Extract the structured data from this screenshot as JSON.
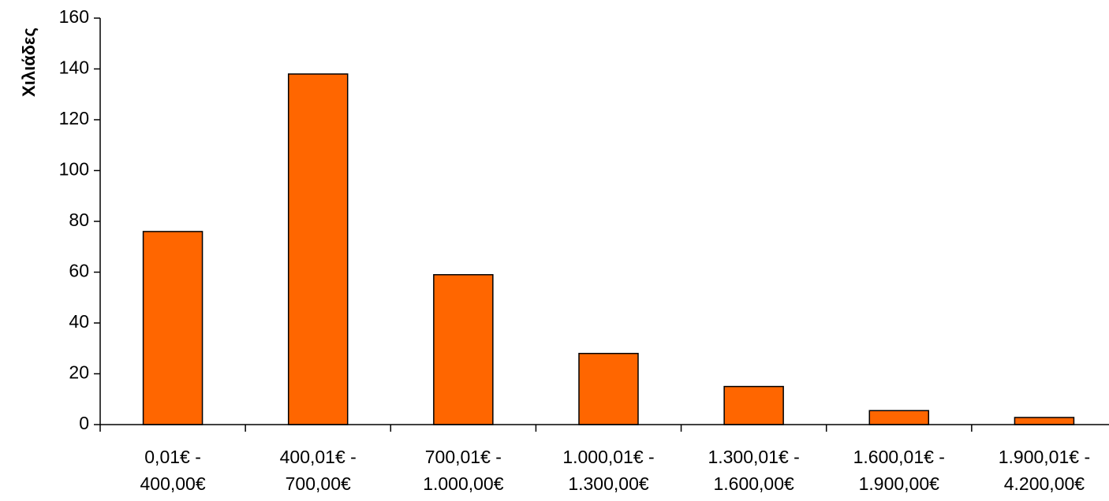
{
  "chart_data": {
    "type": "bar",
    "ylabel": "Χιλιάδες",
    "categories": [
      [
        "0,01€ -",
        "400,00€"
      ],
      [
        "400,01€ -",
        "700,00€"
      ],
      [
        "700,01€ -",
        "1.000,00€"
      ],
      [
        "1.000,01€ -",
        "1.300,00€"
      ],
      [
        "1.300,01€ -",
        "1.600,00€"
      ],
      [
        "1.600,01€ -",
        "1.900,00€"
      ],
      [
        "1.900,01€ -",
        "4.200,00€"
      ]
    ],
    "values": [
      76,
      138,
      59,
      28,
      15,
      5.5,
      2.8
    ],
    "ylim": [
      0,
      160
    ],
    "yticks": [
      0,
      20,
      40,
      60,
      80,
      100,
      120,
      140,
      160
    ],
    "bar_color": "#FF6600",
    "grid": false,
    "legend": "none"
  }
}
